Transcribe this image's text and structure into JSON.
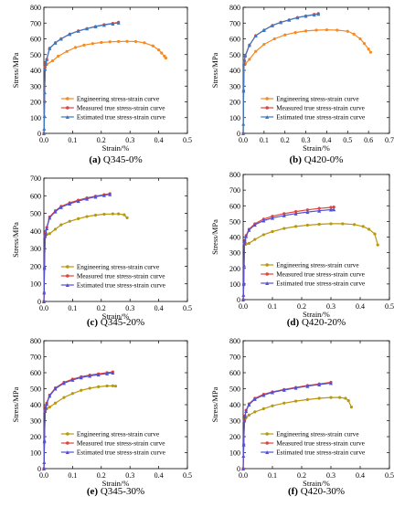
{
  "figure": {
    "panels": [
      {
        "id": "a",
        "caption_letter": "(a)",
        "caption_text": "Q345-0%"
      },
      {
        "id": "b",
        "caption_letter": "(b)",
        "caption_text": "Q420-0%"
      },
      {
        "id": "c",
        "caption_letter": "(c)",
        "caption_text": "Q345-20%"
      },
      {
        "id": "d",
        "caption_letter": "(d)",
        "caption_text": "Q420-20%"
      },
      {
        "id": "e",
        "caption_letter": "(e)",
        "caption_text": "Q345-30%"
      },
      {
        "id": "f",
        "caption_letter": "(f)",
        "caption_text": "Q420-30%"
      }
    ]
  },
  "chart_data": [
    {
      "type": "line",
      "panel": "a",
      "title": "(a) Q345-0%",
      "xlabel": "Strain/%",
      "ylabel": "Stress/MPa",
      "xlim": [
        0,
        0.5
      ],
      "ylim": [
        0,
        800
      ],
      "xticks": [
        "0.0",
        "0.1",
        "0.2",
        "0.3",
        "0.4",
        "0.5"
      ],
      "yticks": [
        "0",
        "100",
        "200",
        "300",
        "400",
        "500",
        "600",
        "700",
        "800"
      ],
      "legend_position": "bottom-right",
      "series": [
        {
          "name": "Engineering stress-strain curve",
          "color": "#f7891e",
          "marker": "circle",
          "x": [
            0,
            0.002,
            0.004,
            0.006,
            0.01,
            0.03,
            0.05,
            0.08,
            0.11,
            0.14,
            0.17,
            0.2,
            0.23,
            0.26,
            0.29,
            0.32,
            0.35,
            0.38,
            0.4,
            0.41,
            0.42,
            0.425
          ],
          "y": [
            0,
            200,
            420,
            440,
            438,
            460,
            490,
            520,
            545,
            560,
            570,
            577,
            581,
            583,
            584,
            583,
            575,
            555,
            530,
            510,
            490,
            478
          ]
        },
        {
          "name": "Measured true stress-strain curve",
          "color": "#e0443a",
          "marker": "circle",
          "x": [
            0,
            0.002,
            0.004,
            0.006,
            0.01,
            0.02,
            0.04,
            0.06,
            0.09,
            0.12,
            0.15,
            0.18,
            0.21,
            0.24,
            0.26
          ],
          "y": [
            0,
            200,
            420,
            450,
            470,
            540,
            575,
            600,
            630,
            650,
            665,
            678,
            690,
            698,
            705
          ]
        },
        {
          "name": "Estimated true stress-strain curve",
          "color": "#3a78c2",
          "marker": "triangle",
          "x": [
            0,
            0.001,
            0.002,
            0.003,
            0.004,
            0.006,
            0.01,
            0.02,
            0.04,
            0.06,
            0.09,
            0.12,
            0.15,
            0.18,
            0.21,
            0.24,
            0.26
          ],
          "y": [
            0,
            30,
            110,
            260,
            410,
            440,
            470,
            540,
            575,
            600,
            630,
            650,
            665,
            678,
            688,
            696,
            702
          ]
        }
      ]
    },
    {
      "type": "line",
      "panel": "b",
      "title": "(b) Q420-0%",
      "xlabel": "Strain/%",
      "ylabel": "Stress/MPa",
      "xlim": [
        0,
        0.7
      ],
      "ylim": [
        0,
        800
      ],
      "xticks": [
        "0.0",
        "0.1",
        "0.2",
        "0.3",
        "0.4",
        "0.5",
        "0.6",
        "0.7"
      ],
      "yticks": [
        "0",
        "100",
        "200",
        "300",
        "400",
        "500",
        "600",
        "700",
        "800"
      ],
      "legend_position": "bottom-right",
      "series": [
        {
          "name": "Engineering stress-strain curve",
          "color": "#f7891e",
          "marker": "circle",
          "x": [
            0,
            0.002,
            0.004,
            0.006,
            0.01,
            0.03,
            0.06,
            0.1,
            0.15,
            0.2,
            0.25,
            0.3,
            0.35,
            0.4,
            0.45,
            0.5,
            0.53,
            0.56,
            0.58,
            0.6,
            0.61
          ],
          "y": [
            0,
            270,
            440,
            445,
            440,
            470,
            520,
            565,
            600,
            625,
            640,
            650,
            655,
            657,
            655,
            648,
            630,
            600,
            570,
            535,
            515
          ]
        },
        {
          "name": "Measured true stress-strain curve",
          "color": "#e0443a",
          "marker": "circle",
          "x": [
            0,
            0.002,
            0.004,
            0.006,
            0.01,
            0.03,
            0.06,
            0.1,
            0.14,
            0.18,
            0.22,
            0.26,
            0.3,
            0.34,
            0.36
          ],
          "y": [
            0,
            270,
            440,
            460,
            490,
            560,
            620,
            655,
            685,
            705,
            720,
            735,
            745,
            755,
            760
          ]
        },
        {
          "name": "Estimated true stress-strain curve",
          "color": "#3a78c2",
          "marker": "triangle",
          "x": [
            0,
            0.001,
            0.002,
            0.004,
            0.006,
            0.01,
            0.03,
            0.06,
            0.1,
            0.14,
            0.18,
            0.22,
            0.26,
            0.3,
            0.34,
            0.36
          ],
          "y": [
            0,
            60,
            270,
            440,
            465,
            495,
            560,
            620,
            655,
            685,
            705,
            720,
            735,
            745,
            753,
            758
          ]
        }
      ]
    },
    {
      "type": "line",
      "panel": "c",
      "title": "(c) Q345-20%",
      "xlabel": "Strain/%",
      "ylabel": "Stress/MPa",
      "xlim": [
        0,
        0.5
      ],
      "ylim": [
        0,
        700
      ],
      "xticks": [
        "0.0",
        "0.1",
        "0.2",
        "0.3",
        "0.4",
        "0.5"
      ],
      "yticks": [
        "0",
        "100",
        "200",
        "300",
        "400",
        "500",
        "600",
        "700"
      ],
      "legend_position": "bottom-right",
      "series": [
        {
          "name": "Engineering stress-strain curve",
          "color": "#b8980e",
          "marker": "circle",
          "x": [
            0,
            0.001,
            0.002,
            0.004,
            0.006,
            0.01,
            0.02,
            0.04,
            0.06,
            0.09,
            0.12,
            0.15,
            0.18,
            0.21,
            0.24,
            0.26,
            0.28,
            0.29
          ],
          "y": [
            0,
            50,
            190,
            370,
            380,
            380,
            385,
            410,
            435,
            455,
            470,
            482,
            490,
            495,
            497,
            497,
            492,
            475
          ]
        },
        {
          "name": "Measured true stress-strain curve",
          "color": "#e0443a",
          "marker": "circle",
          "x": [
            0,
            0.002,
            0.004,
            0.006,
            0.01,
            0.02,
            0.04,
            0.06,
            0.09,
            0.12,
            0.15,
            0.18,
            0.21,
            0.23
          ],
          "y": [
            0,
            190,
            370,
            390,
            420,
            480,
            515,
            540,
            560,
            575,
            588,
            598,
            606,
            612
          ]
        },
        {
          "name": "Estimated true stress-strain curve",
          "color": "#5050d8",
          "marker": "triangle",
          "x": [
            0,
            0.001,
            0.002,
            0.004,
            0.006,
            0.01,
            0.02,
            0.04,
            0.06,
            0.09,
            0.12,
            0.15,
            0.18,
            0.21,
            0.23
          ],
          "y": [
            0,
            50,
            190,
            370,
            385,
            415,
            475,
            510,
            535,
            555,
            570,
            583,
            594,
            603,
            608
          ]
        }
      ]
    },
    {
      "type": "line",
      "panel": "d",
      "title": "(d) Q420-20%",
      "xlabel": "Strain/%",
      "ylabel": "Stress/MPa",
      "xlim": [
        0,
        0.5
      ],
      "ylim": [
        0,
        800
      ],
      "xticks": [
        "0.0",
        "0.1",
        "0.2",
        "0.3",
        "0.4",
        "0.5"
      ],
      "yticks": [
        "0",
        "100",
        "200",
        "300",
        "400",
        "500",
        "600",
        "700",
        "800"
      ],
      "legend_position": "bottom-right",
      "series": [
        {
          "name": "Engineering stress-strain curve",
          "color": "#b8980e",
          "marker": "circle",
          "x": [
            0,
            0.002,
            0.004,
            0.006,
            0.01,
            0.02,
            0.04,
            0.07,
            0.1,
            0.14,
            0.18,
            0.22,
            0.26,
            0.3,
            0.34,
            0.38,
            0.41,
            0.43,
            0.45,
            0.46
          ],
          "y": [
            0,
            100,
            360,
            355,
            355,
            360,
            385,
            415,
            435,
            455,
            468,
            476,
            482,
            485,
            485,
            480,
            468,
            450,
            420,
            350
          ]
        },
        {
          "name": "Measured true stress-strain curve",
          "color": "#e0443a",
          "marker": "circle",
          "x": [
            0,
            0.002,
            0.004,
            0.006,
            0.01,
            0.02,
            0.04,
            0.07,
            0.1,
            0.14,
            0.18,
            0.22,
            0.26,
            0.3,
            0.31
          ],
          "y": [
            0,
            100,
            360,
            380,
            410,
            450,
            485,
            515,
            533,
            550,
            563,
            574,
            583,
            590,
            592
          ]
        },
        {
          "name": "Estimated true stress-strain curve",
          "color": "#5050d8",
          "marker": "triangle",
          "x": [
            0,
            0.001,
            0.002,
            0.003,
            0.004,
            0.006,
            0.01,
            0.02,
            0.04,
            0.07,
            0.1,
            0.14,
            0.18,
            0.22,
            0.26,
            0.3,
            0.31
          ],
          "y": [
            0,
            30,
            100,
            220,
            360,
            375,
            405,
            445,
            478,
            505,
            522,
            538,
            550,
            560,
            568,
            575,
            577
          ]
        }
      ]
    },
    {
      "type": "line",
      "panel": "e",
      "title": "(e) Q345-30%",
      "xlabel": "Strain/%",
      "ylabel": "Stress/MPa",
      "xlim": [
        0,
        0.5
      ],
      "ylim": [
        0,
        800
      ],
      "xticks": [
        "0.0",
        "0.1",
        "0.2",
        "0.3",
        "0.4",
        "0.5"
      ],
      "yticks": [
        "0",
        "100",
        "200",
        "300",
        "400",
        "500",
        "600",
        "700",
        "800"
      ],
      "legend_position": "bottom-right",
      "series": [
        {
          "name": "Engineering stress-strain curve",
          "color": "#b8980e",
          "marker": "circle",
          "x": [
            0,
            0.002,
            0.004,
            0.006,
            0.01,
            0.02,
            0.04,
            0.07,
            0.1,
            0.13,
            0.16,
            0.19,
            0.22,
            0.24,
            0.25
          ],
          "y": [
            0,
            170,
            360,
            370,
            375,
            385,
            410,
            445,
            470,
            490,
            503,
            512,
            517,
            518,
            516
          ]
        },
        {
          "name": "Measured true stress-strain curve",
          "color": "#e0443a",
          "marker": "circle",
          "x": [
            0,
            0.002,
            0.004,
            0.006,
            0.01,
            0.02,
            0.04,
            0.07,
            0.1,
            0.13,
            0.16,
            0.19,
            0.22,
            0.24
          ],
          "y": [
            0,
            170,
            360,
            385,
            410,
            460,
            505,
            540,
            560,
            575,
            585,
            593,
            600,
            605
          ]
        },
        {
          "name": "Estimated true stress-strain curve",
          "color": "#5050d8",
          "marker": "triangle",
          "x": [
            0,
            0.001,
            0.002,
            0.004,
            0.006,
            0.01,
            0.02,
            0.04,
            0.07,
            0.1,
            0.13,
            0.16,
            0.19,
            0.22,
            0.24
          ],
          "y": [
            0,
            40,
            170,
            360,
            380,
            405,
            455,
            500,
            535,
            555,
            570,
            580,
            588,
            595,
            600
          ]
        }
      ]
    },
    {
      "type": "line",
      "panel": "f",
      "title": "(f) Q420-30%",
      "xlabel": "Strain/%",
      "ylabel": "Stress/MPa",
      "xlim": [
        0,
        0.5
      ],
      "ylim": [
        0,
        800
      ],
      "xticks": [
        "0.0",
        "0.1",
        "0.2",
        "0.3",
        "0.4",
        "0.5"
      ],
      "yticks": [
        "0",
        "100",
        "200",
        "300",
        "400",
        "500",
        "600",
        "700",
        "800"
      ],
      "legend_position": "bottom-right",
      "series": [
        {
          "name": "Engineering stress-strain curve",
          "color": "#b8980e",
          "marker": "circle",
          "x": [
            0,
            0.002,
            0.004,
            0.006,
            0.01,
            0.02,
            0.04,
            0.07,
            0.1,
            0.14,
            0.18,
            0.22,
            0.26,
            0.3,
            0.33,
            0.35,
            0.36,
            0.37
          ],
          "y": [
            0,
            150,
            300,
            310,
            320,
            335,
            355,
            375,
            393,
            410,
            422,
            432,
            440,
            445,
            445,
            440,
            425,
            385
          ]
        },
        {
          "name": "Measured true stress-strain curve",
          "color": "#e0443a",
          "marker": "circle",
          "x": [
            0,
            0.002,
            0.004,
            0.006,
            0.01,
            0.02,
            0.04,
            0.07,
            0.1,
            0.14,
            0.18,
            0.22,
            0.26,
            0.3
          ],
          "y": [
            0,
            150,
            300,
            330,
            365,
            405,
            440,
            465,
            480,
            495,
            508,
            520,
            530,
            540
          ]
        },
        {
          "name": "Estimated true stress-strain curve",
          "color": "#5050d8",
          "marker": "triangle",
          "x": [
            0,
            0.001,
            0.002,
            0.004,
            0.006,
            0.01,
            0.02,
            0.04,
            0.07,
            0.1,
            0.14,
            0.18,
            0.22,
            0.26,
            0.3
          ],
          "y": [
            0,
            80,
            150,
            300,
            325,
            360,
            400,
            435,
            460,
            477,
            492,
            505,
            516,
            526,
            535
          ]
        }
      ]
    }
  ]
}
